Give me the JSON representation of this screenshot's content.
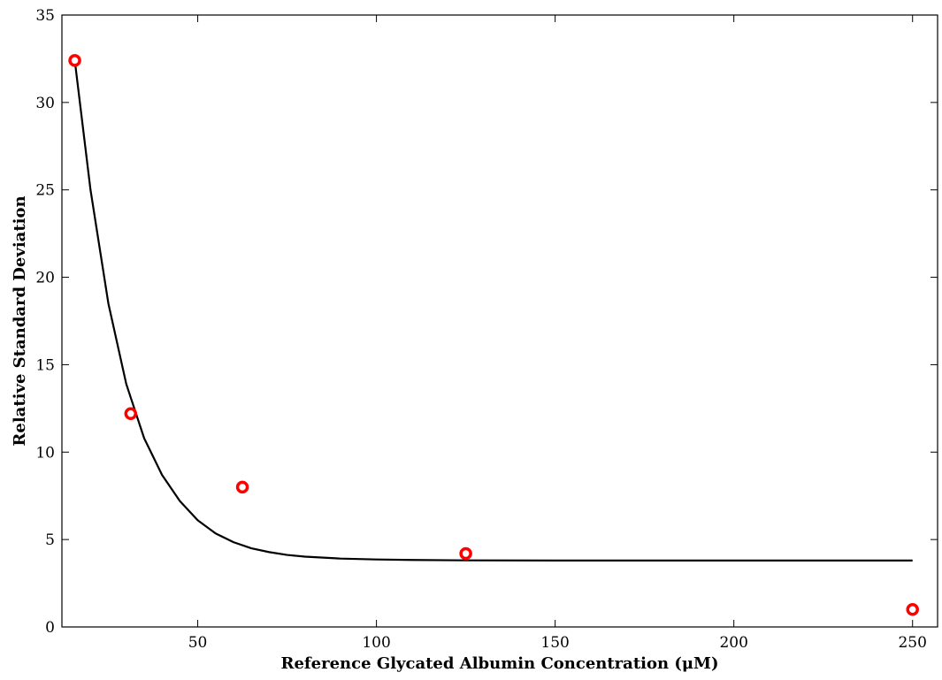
{
  "chart_data": {
    "type": "scatter",
    "title": "",
    "xlabel": "Reference Glycated Albumin Concentration (μM)",
    "ylabel": "Relative Standard Deviation",
    "xlim": [
      12,
      257
    ],
    "ylim": [
      0,
      35
    ],
    "xticks": [
      50,
      100,
      150,
      200,
      250
    ],
    "yticks": [
      0,
      5,
      10,
      15,
      20,
      25,
      30,
      35
    ],
    "xtick_labels": [
      "50",
      "100",
      "150",
      "200",
      "250"
    ],
    "ytick_labels": [
      "0",
      "5",
      "10",
      "15",
      "20",
      "25",
      "30",
      "35"
    ],
    "grid": false,
    "series": [
      {
        "kind": "scatter",
        "marker": "circle-open",
        "color": "#ff0000",
        "x": [
          15.6,
          31.25,
          62.5,
          125,
          250
        ],
        "y": [
          32.4,
          12.2,
          8.0,
          4.2,
          1.0
        ]
      },
      {
        "kind": "line",
        "color": "#000000",
        "x": [
          15.6,
          20,
          25,
          30,
          35,
          40,
          45,
          50,
          55,
          60,
          65,
          70,
          75,
          80,
          90,
          100,
          110,
          125,
          150,
          175,
          200,
          225,
          250
        ],
        "y": [
          32.4,
          25.0,
          18.5,
          13.9,
          10.8,
          8.7,
          7.2,
          6.1,
          5.35,
          4.85,
          4.5,
          4.28,
          4.12,
          4.02,
          3.91,
          3.86,
          3.83,
          3.81,
          3.8,
          3.8,
          3.8,
          3.8,
          3.8
        ]
      }
    ]
  }
}
